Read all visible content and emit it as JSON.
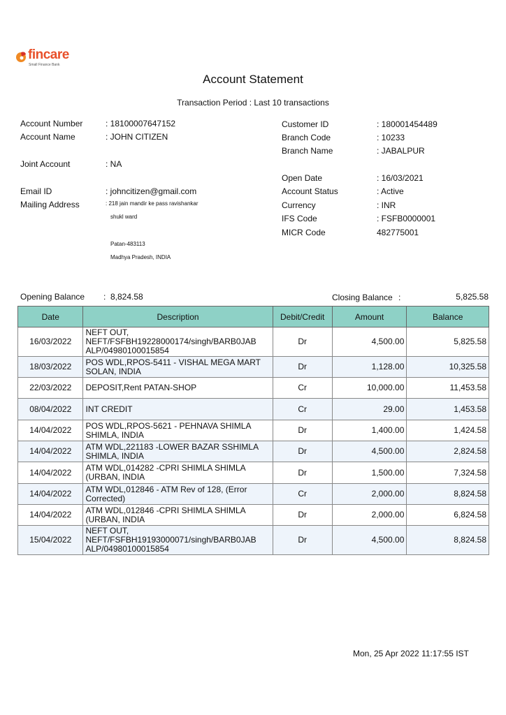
{
  "logo": {
    "brand": "fincare",
    "tagline": "Small Finance Bank",
    "brand_color": "#e8502a"
  },
  "title": "Account Statement",
  "period": "Transaction Period : Last 10 transactions",
  "left_fields": [
    {
      "label": "Account Number",
      "value": ": 18100007647152"
    },
    {
      "label": "Account Name",
      "value": ": JOHN CITIZEN"
    },
    {
      "label": "Joint Account",
      "value": ": NA"
    },
    {
      "label": "Email  ID",
      "value": ": johncitizen@gmail.com"
    },
    {
      "label": "Mailing Address",
      "value": ": 218 jain mandir ke pass ravishankar"
    }
  ],
  "address_lines": [
    "shukl ward",
    "Patan-483113",
    "Madhya Pradesh, INDIA"
  ],
  "right_fields": [
    {
      "label": "Customer ID",
      "value": ": 180001454489"
    },
    {
      "label": "Branch Code",
      "value": ": 10233"
    },
    {
      "label": "Branch Name",
      "value": ": JABALPUR"
    },
    {
      "label": "Open Date",
      "value": ": 16/03/2021"
    },
    {
      "label": "Account Status",
      "value": ": Active"
    },
    {
      "label": "Currency",
      "value": ": INR"
    },
    {
      "label": "IFS Code",
      "value": ": FSFB0000001"
    },
    {
      "label": "MICR Code",
      "value": "482775001"
    }
  ],
  "opening": {
    "label": "Opening Balance",
    "sep": ":",
    "value": "8,824.58"
  },
  "closing": {
    "label": "Closing Balance",
    "sep": ":",
    "value": "5,825.58"
  },
  "table": {
    "headers": [
      "Date",
      "Description",
      "Debit/Credit",
      "Amount",
      "Balance"
    ],
    "header_color": "#8ed1c6",
    "rows": [
      [
        "16/03/2022",
        "NEFT OUT, NEFT/FSFBH19228000174/singh/BARB0JAB ALP/04980100015854",
        "Dr",
        "4,500.00",
        "5,825.58"
      ],
      [
        "18/03/2022",
        "POS WDL,RPOS-5411 - VISHAL MEGA MART SOLAN, INDIA",
        "Dr",
        "1,128.00",
        "10,325.58"
      ],
      [
        "22/03/2022",
        "DEPOSIT,Rent PATAN-SHOP",
        "Cr",
        "10,000.00",
        "11,453.58"
      ],
      [
        "08/04/2022",
        "INT CREDIT",
        "Cr",
        "29.00",
        "1,453.58"
      ],
      [
        "14/04/2022",
        "POS WDL,RPOS-5621 - PEHNAVA SHIMLA SHIMLA, INDIA",
        "Dr",
        "1,400.00",
        "1,424.58"
      ],
      [
        "14/04/2022",
        "ATM WDL,221183 -LOWER BAZAR SSHIMLA SHIMLA, INDIA",
        "Dr",
        "4,500.00",
        "2,824.58"
      ],
      [
        "14/04/2022",
        "ATM WDL,014282 -CPRI SHIMLA SHIMLA (URBAN, INDIA",
        "Dr",
        "1,500.00",
        "7,324.58"
      ],
      [
        "14/04/2022",
        "ATM WDL,012846 - ATM Rev of 128, (Error Corrected)",
        "Cr",
        "2,000.00",
        "8,824.58"
      ],
      [
        "14/04/2022",
        "ATM WDL,012846 -CPRI SHIMLA SHIMLA (URBAN, INDIA",
        "Dr",
        "2,000.00",
        "6,824.58"
      ],
      [
        "15/04/2022",
        "NEFT OUT, NEFT/FSFBH19193000071/singh/BARB0JAB ALP/04980100015854",
        "Dr",
        "4,500.00",
        "8,824.58"
      ]
    ]
  },
  "timestamp": "Mon, 25 Apr 2022 11:17:55 IST"
}
